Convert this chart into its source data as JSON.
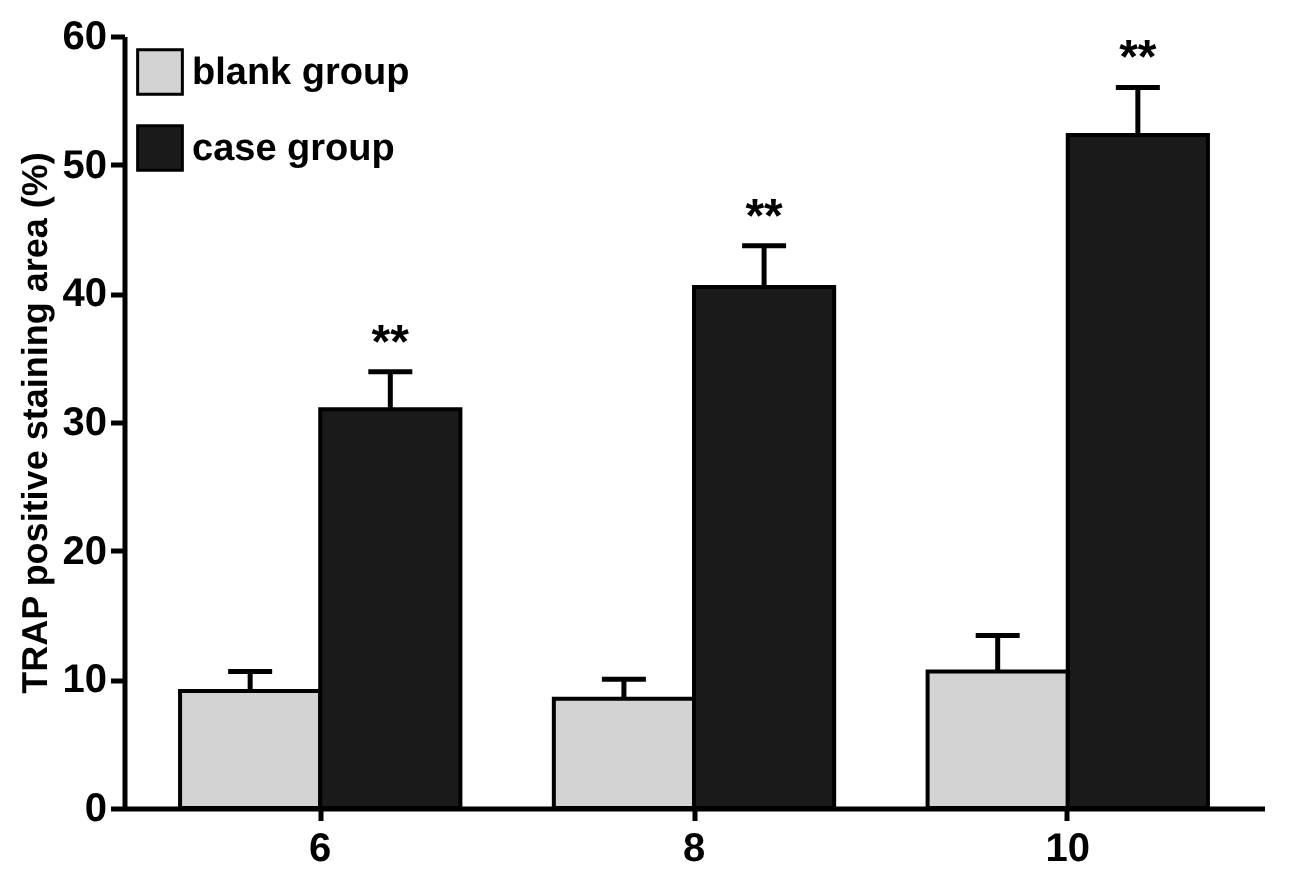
{
  "chart_data": {
    "type": "bar",
    "ylabel": "TRAP positive staining area (%)",
    "categories": [
      "6",
      "8",
      "10"
    ],
    "series": [
      {
        "name": "blank group",
        "color": "#d3d3d3",
        "values": [
          9.1,
          8.5,
          10.6
        ],
        "errors": [
          [
            9.1,
            10.6
          ],
          [
            8.5,
            10.0
          ],
          [
            10.6,
            13.4
          ]
        ]
      },
      {
        "name": "case group",
        "color": "#1a1a1a",
        "values": [
          31.0,
          40.5,
          52.3
        ],
        "errors": [
          [
            31.0,
            33.9
          ],
          [
            40.5,
            43.7
          ],
          [
            52.3,
            56.0
          ]
        ]
      }
    ],
    "annotations": [
      "**",
      "**",
      "**"
    ],
    "ylim": [
      0,
      60
    ],
    "yticks": [
      0,
      10,
      20,
      30,
      40,
      50,
      60
    ],
    "grid": false,
    "legend": "top left"
  }
}
